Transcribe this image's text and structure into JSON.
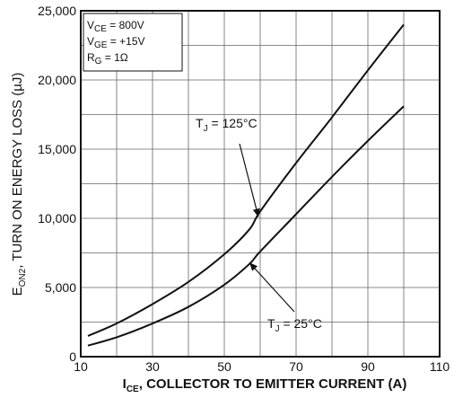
{
  "chart_data": {
    "type": "line",
    "xlabel": {
      "main": "I",
      "sub": "CE",
      "rest": ", COLLECTOR TO EMITTER CURRENT (A)"
    },
    "ylabel": {
      "main": "E",
      "sub": "ON2",
      "rest": ", TURN ON ENERGY LOSS (µJ)"
    },
    "xlim": [
      10,
      110
    ],
    "ylim": [
      0,
      25000
    ],
    "xticks": [
      10,
      30,
      50,
      70,
      90,
      110
    ],
    "xtick_labels": [
      "10",
      "30",
      "50",
      "70",
      "90",
      "110"
    ],
    "yticks": [
      0,
      5000,
      10000,
      15000,
      20000,
      25000
    ],
    "ytick_labels": [
      "0",
      "5,000",
      "10,000",
      "15,000",
      "20,000",
      "25,000"
    ],
    "grid": true,
    "conditions": [
      {
        "main": "V",
        "sub": "CE",
        "rest": " =  800V"
      },
      {
        "main": "V",
        "sub": "GE",
        "rest": " =  +15V"
      },
      {
        "main": "R",
        "sub": "G",
        "rest": " = 1Ω"
      }
    ],
    "series": [
      {
        "name": {
          "main": "T",
          "sub": "J",
          "rest": " = 125°C"
        },
        "x": [
          12,
          20,
          30,
          40,
          50,
          57,
          60,
          70,
          80,
          90,
          100
        ],
        "y": [
          1500,
          2400,
          3800,
          5400,
          7400,
          9200,
          10500,
          14000,
          17300,
          20700,
          24000
        ]
      },
      {
        "name": {
          "main": "T",
          "sub": "J",
          "rest": " = 25°C"
        },
        "x": [
          12,
          20,
          30,
          40,
          50,
          57,
          60,
          70,
          80,
          90,
          100
        ],
        "y": [
          800,
          1400,
          2400,
          3600,
          5200,
          6700,
          7600,
          10300,
          13000,
          15600,
          18100
        ]
      }
    ]
  }
}
